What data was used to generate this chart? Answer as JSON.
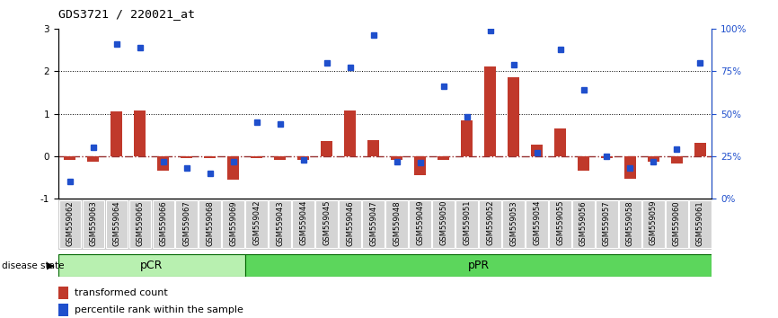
{
  "title": "GDS3721 / 220021_at",
  "samples": [
    "GSM559062",
    "GSM559063",
    "GSM559064",
    "GSM559065",
    "GSM559066",
    "GSM559067",
    "GSM559068",
    "GSM559069",
    "GSM559042",
    "GSM559043",
    "GSM559044",
    "GSM559045",
    "GSM559046",
    "GSM559047",
    "GSM559048",
    "GSM559049",
    "GSM559050",
    "GSM559051",
    "GSM559052",
    "GSM559053",
    "GSM559054",
    "GSM559055",
    "GSM559056",
    "GSM559057",
    "GSM559058",
    "GSM559059",
    "GSM559060",
    "GSM559061"
  ],
  "transformed_count": [
    -0.08,
    -0.12,
    1.05,
    1.08,
    -0.35,
    -0.04,
    -0.05,
    -0.55,
    -0.04,
    -0.08,
    -0.08,
    0.35,
    1.08,
    0.38,
    -0.08,
    -0.45,
    -0.08,
    0.85,
    2.12,
    1.85,
    0.28,
    0.65,
    -0.35,
    -0.05,
    -0.52,
    -0.12,
    -0.18,
    0.32
  ],
  "percentile_rank_pct": [
    10,
    30,
    91,
    89,
    22,
    18,
    15,
    22,
    45,
    44,
    23,
    80,
    77,
    96,
    22,
    21,
    66,
    48,
    99,
    79,
    27,
    88,
    64,
    25,
    18,
    22,
    29,
    80
  ],
  "pCR_count": 8,
  "bar_color": "#C0392B",
  "dot_color": "#1F4FCC",
  "pCR_light_color": "#B8F0B0",
  "pPR_color": "#5CD65C",
  "ylim": [
    -1,
    3
  ],
  "dotted_lines": [
    1.0,
    2.0
  ],
  "zero_line_color": "#8B1A1A",
  "right_axis_ticks": [
    0,
    25,
    50,
    75,
    100
  ],
  "right_axis_labels": [
    "0%",
    "25%",
    "50%",
    "75%",
    "100%"
  ]
}
